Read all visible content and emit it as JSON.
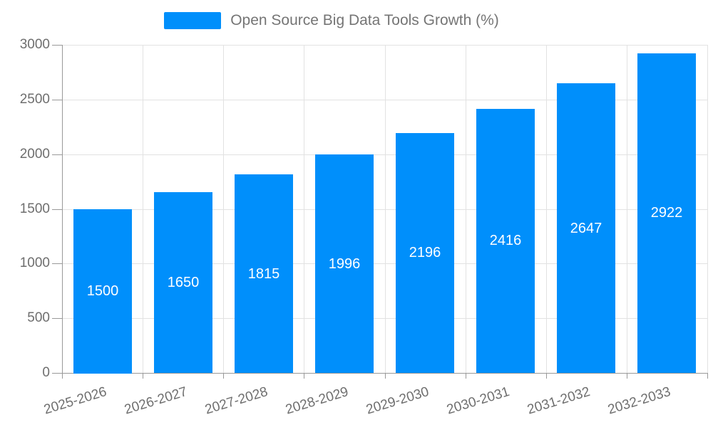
{
  "chart_data": {
    "type": "bar",
    "title": "Open Source Big Data Tools Growth (%)",
    "legend": [
      "Open Source Big Data Tools Growth (%)"
    ],
    "legend_position": "top-center",
    "categories": [
      "2025-2026",
      "2026-2027",
      "2027-2028",
      "2028-2029",
      "2029-2030",
      "2030-2031",
      "2031-2032",
      "2032-2033"
    ],
    "values": [
      1500,
      1650,
      1815,
      1996,
      2196,
      2416,
      2647,
      2922
    ],
    "xlabel": "",
    "ylabel": "",
    "ylim": [
      0,
      3000
    ],
    "yticks": [
      0,
      500,
      1000,
      1500,
      2000,
      2500,
      3000
    ],
    "grid": true,
    "bar_label_position": "inside-center",
    "x_label_rotation_deg": -17,
    "colors": {
      "bar": "#008FFB",
      "bar_label": "#FFFFFF",
      "axis_line": "#999999",
      "grid_line": "#E2E2E2",
      "tick_text": "#6E6E6E",
      "legend_text": "#757575",
      "background": "#FFFFFF"
    }
  }
}
